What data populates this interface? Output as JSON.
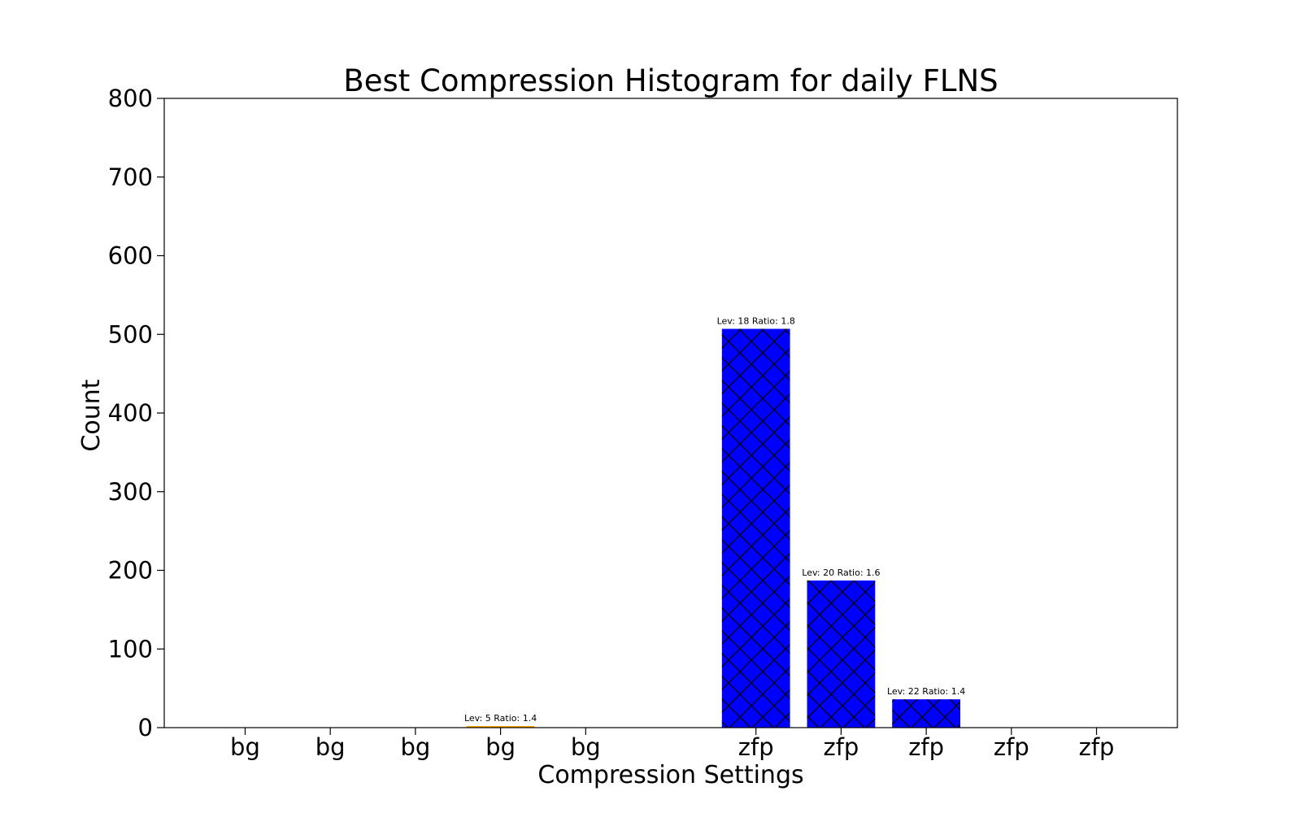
{
  "chart_data": {
    "type": "bar",
    "title": "Best Compression Histogram for daily FLNS",
    "xlabel": "Compression Settings",
    "ylabel": "Count",
    "ylim": [
      0,
      800
    ],
    "yticks": [
      0,
      100,
      200,
      300,
      400,
      500,
      600,
      700,
      800
    ],
    "grid": false,
    "legend": "none",
    "hatch": "cross",
    "colors": {
      "bg": "#ffa500",
      "zfp": "#0000ff",
      "hatch": "#000000",
      "frame": "#000000"
    },
    "categories": [
      "bg",
      "bg",
      "bg",
      "bg",
      "bg",
      "zfp",
      "zfp",
      "zfp",
      "zfp",
      "zfp"
    ],
    "positions": [
      1,
      2,
      3,
      4,
      5,
      7,
      8,
      9,
      10,
      11
    ],
    "values": [
      0,
      0,
      0,
      2,
      0,
      507,
      187,
      36,
      0,
      0
    ],
    "bar_labels": [
      "",
      "",
      "",
      "Lev: 5 Ratio: 1.4",
      "",
      "Lev: 18 Ratio: 1.8",
      "Lev: 20 Ratio: 1.6",
      "Lev: 22 Ratio: 1.4",
      "",
      ""
    ],
    "xlim": [
      0.05,
      11.95
    ]
  }
}
